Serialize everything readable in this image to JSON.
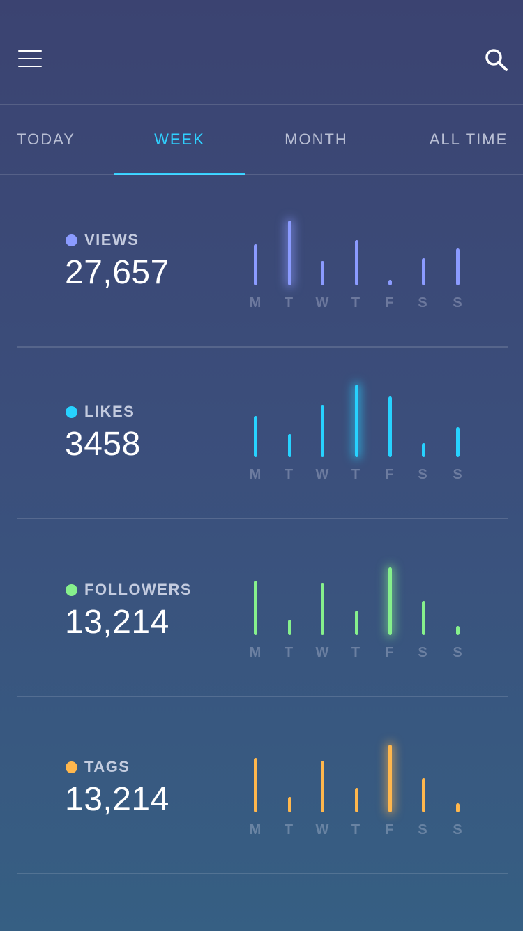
{
  "header": {
    "menu_icon": "hamburger-menu-icon",
    "search_icon": "search-icon"
  },
  "tabs": [
    {
      "label": "TODAY",
      "active": false
    },
    {
      "label": "WEEK",
      "active": true
    },
    {
      "label": "MONTH",
      "active": false
    },
    {
      "label": "ALL TIME",
      "active": false
    }
  ],
  "accent_color": "#2fd0ff",
  "days": [
    "M",
    "T",
    "W",
    "T",
    "F",
    "S",
    "S"
  ],
  "stats": [
    {
      "label": "VIEWS",
      "value": "27,657",
      "color": "#8b9bff",
      "chart_data": {
        "type": "bar",
        "categories": [
          "M",
          "T",
          "W",
          "T",
          "F",
          "S",
          "S"
        ],
        "values": [
          60,
          95,
          36,
          66,
          8,
          40,
          54
        ],
        "peak_index": 1
      }
    },
    {
      "label": "LIKES",
      "value": "3458",
      "color": "#27d2ff",
      "chart_data": {
        "type": "bar",
        "categories": [
          "M",
          "T",
          "W",
          "T",
          "F",
          "S",
          "S"
        ],
        "values": [
          60,
          34,
          76,
          106,
          89,
          20,
          44
        ],
        "peak_index": 3
      }
    },
    {
      "label": "FOLLOWERS",
      "value": "13,214",
      "color": "#86f08c",
      "chart_data": {
        "type": "bar",
        "categories": [
          "M",
          "T",
          "W",
          "T",
          "F",
          "S",
          "S"
        ],
        "values": [
          80,
          22,
          76,
          36,
          99,
          50,
          13
        ],
        "peak_index": 4
      }
    },
    {
      "label": "TAGS",
      "value": "13,214",
      "color": "#ffb74d",
      "chart_data": {
        "type": "bar",
        "categories": [
          "M",
          "T",
          "W",
          "T",
          "F",
          "S",
          "S"
        ],
        "values": [
          80,
          22,
          76,
          36,
          99,
          50,
          13
        ],
        "peak_index": 4
      }
    }
  ]
}
